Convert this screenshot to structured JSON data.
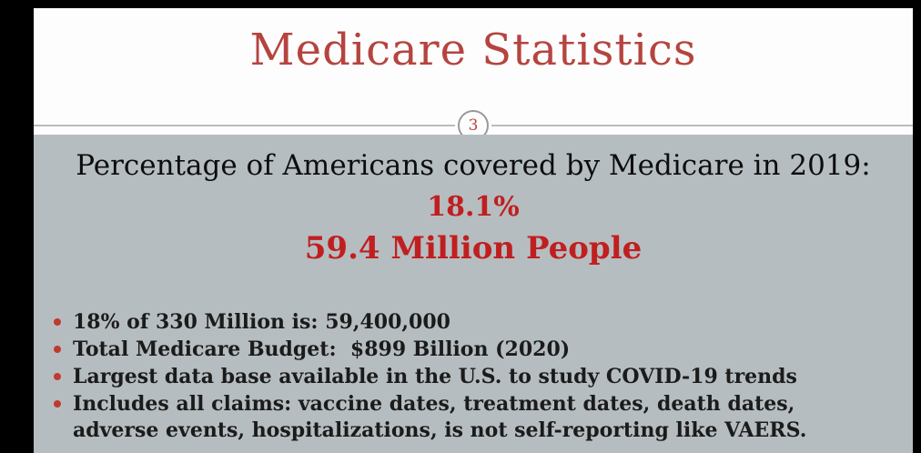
{
  "slide": {
    "title": "Medicare Statistics",
    "slide_number": "3",
    "heading": "Percentage of Americans covered by Medicare in 2019:",
    "stat_percent": "18.1%",
    "stat_people": "59.4 Million People",
    "bullets": [
      "18% of 330 Million is: 59,400,000",
      "Total Medicare Budget:  $899 Billion (2020)",
      "Largest data base available in the U.S. to study COVID-19 trends",
      "Includes all claims: vaccine dates, treatment dates, death dates, adverse events, hospitalizations, is not self-reporting like VAERS."
    ],
    "colors": {
      "title_red": "#b5443f",
      "stat_red": "#c01f20",
      "bullet_red": "#c03a2f",
      "body_bg": "#b6bdc0",
      "frame_black": "#000000",
      "header_bg": "#fdfdfd",
      "text_dark": "#1b1b1b"
    }
  }
}
